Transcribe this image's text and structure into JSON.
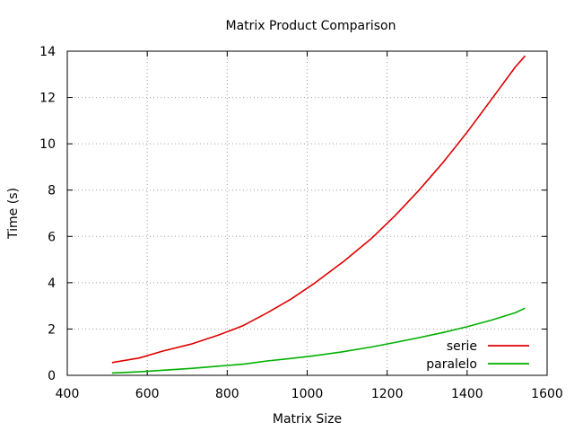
{
  "chart_data": {
    "type": "line",
    "title": "Matrix Product Comparison",
    "xlabel": "Matrix Size",
    "ylabel": "Time (s)",
    "xlim": [
      400,
      1600
    ],
    "ylim": [
      0,
      14
    ],
    "xticks": [
      400,
      600,
      800,
      1000,
      1200,
      1400,
      1600
    ],
    "yticks": [
      0,
      2,
      4,
      6,
      8,
      10,
      12,
      14
    ],
    "grid": true,
    "legend_position": "bottom-right",
    "series": [
      {
        "name": "serie",
        "color": "#e00000",
        "x": [
          512,
          580,
          640,
          710,
          780,
          840,
          900,
          960,
          1020,
          1090,
          1160,
          1220,
          1280,
          1340,
          1400,
          1460,
          1520,
          1545
        ],
        "y": [
          0.55,
          0.75,
          1.05,
          1.35,
          1.75,
          2.15,
          2.7,
          3.3,
          4.0,
          4.9,
          5.9,
          6.9,
          8.0,
          9.2,
          10.5,
          11.9,
          13.3,
          13.8
        ]
      },
      {
        "name": "paralelo",
        "color": "#00b000",
        "x": [
          512,
          580,
          640,
          710,
          780,
          840,
          900,
          960,
          1020,
          1090,
          1160,
          1220,
          1280,
          1340,
          1400,
          1460,
          1520,
          1545
        ],
        "y": [
          0.1,
          0.15,
          0.22,
          0.3,
          0.4,
          0.48,
          0.62,
          0.73,
          0.85,
          1.02,
          1.22,
          1.42,
          1.63,
          1.85,
          2.1,
          2.38,
          2.7,
          2.9
        ]
      }
    ]
  }
}
